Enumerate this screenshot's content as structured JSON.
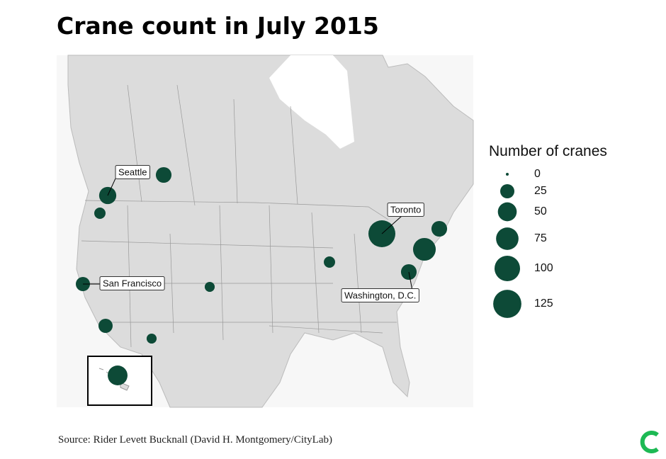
{
  "chart_data": {
    "type": "map",
    "title": "Crane count in July 2015",
    "source": "Source: Rider Levett Bucknall (David H. Montgomery/CityLab)",
    "color": "#0d4a37",
    "points": [
      {
        "label": "Seattle",
        "value": 40
      },
      {
        "value": 32
      },
      {
        "value": 14
      },
      {
        "label": "San Francisco",
        "value": 25
      },
      {
        "value": 25
      },
      {
        "value": 10
      },
      {
        "value": 10
      },
      {
        "value": 56
      },
      {
        "value": 14
      },
      {
        "label": "Toronto",
        "value": 113
      },
      {
        "value": 32
      },
      {
        "value": 77
      },
      {
        "label": "Washington, D.C.",
        "value": 32
      }
    ],
    "size_legend": {
      "title": "Number of cranes",
      "values": [
        0,
        25,
        50,
        75,
        100,
        125
      ]
    }
  }
}
